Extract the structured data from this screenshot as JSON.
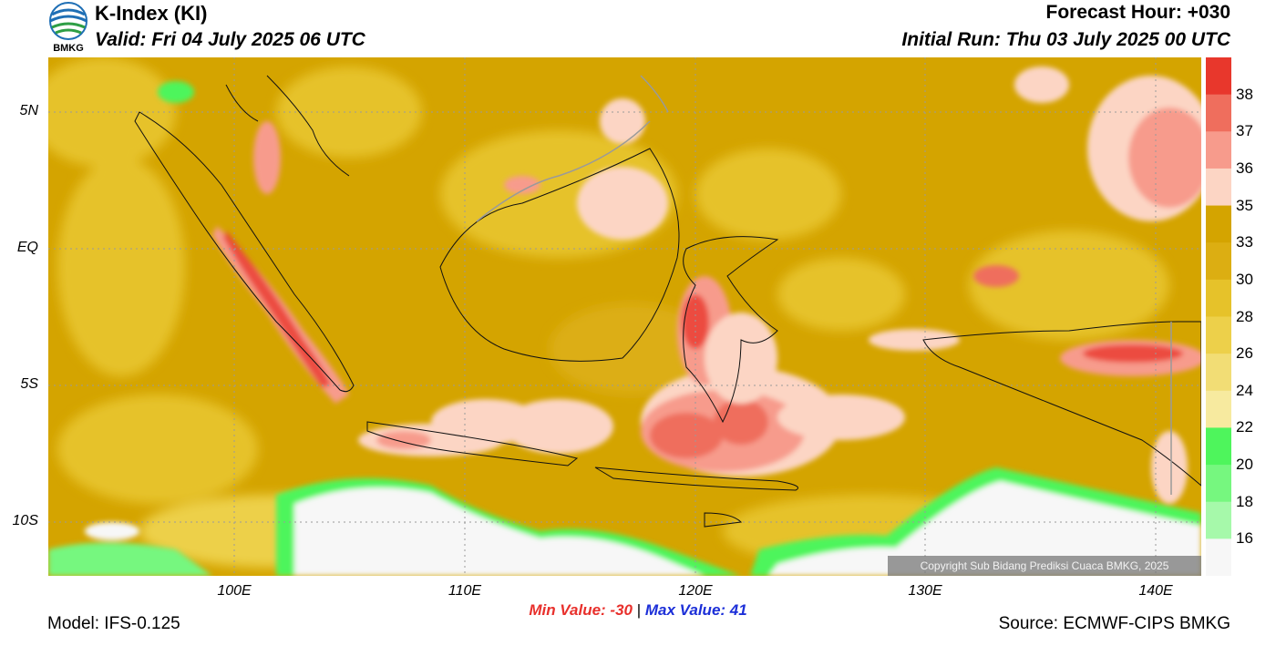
{
  "header": {
    "title": "K-Index (KI)",
    "valid": "Valid: Fri 04 July 2025 06 UTC",
    "forecast_hour": "Forecast Hour: +030",
    "initial_run": "Initial Run: Thu 03 July 2025 00 UTC",
    "logo_text": "BMKG"
  },
  "map": {
    "lat_labels": [
      "5N",
      "EQ",
      "5S",
      "10S"
    ],
    "lon_labels": [
      "100E",
      "110E",
      "120E",
      "130E",
      "140E"
    ],
    "copyright": "Copyright Sub Bidang Prediksi Cuaca BMKG, 2025"
  },
  "colorbar": {
    "labels": [
      "38",
      "37",
      "36",
      "35",
      "33",
      "30",
      "28",
      "26",
      "24",
      "22",
      "20",
      "18",
      "16"
    ],
    "colors": [
      "#e8372c",
      "#ef6e5d",
      "#f79b8c",
      "#fcd5c4",
      "#d4a400",
      "#dcae12",
      "#e6c22a",
      "#edd04a",
      "#f2dd75",
      "#f7ea9f",
      "#4ef55c",
      "#76f77f",
      "#a6f9aa",
      "#f7f7f7"
    ]
  },
  "stats": {
    "min": "Min Value: -30",
    "separator": "|",
    "max": "Max Value:  41"
  },
  "footer": {
    "model": "Model: IFS-0.125",
    "source": "Source: ECMWF-CIPS BMKG"
  }
}
